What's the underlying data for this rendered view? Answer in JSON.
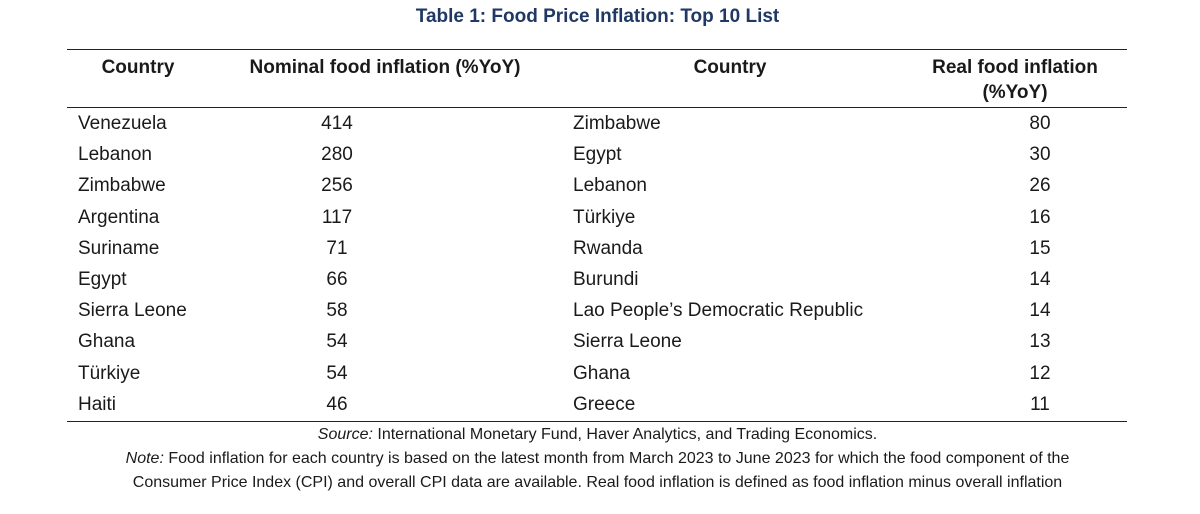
{
  "title": "Table 1: Food Price Inflation: Top 10 List",
  "headers": {
    "country_left": "Country",
    "nominal": "Nominal food inflation (%YoY)",
    "country_right": "Country",
    "real_line1": "Real food inflation",
    "real_line2": "(%YoY)"
  },
  "rows": [
    {
      "country_nominal": "Venezuela",
      "nominal": "414",
      "country_real": "Zimbabwe",
      "real": "80"
    },
    {
      "country_nominal": "Lebanon",
      "nominal": "280",
      "country_real": "Egypt",
      "real": "30"
    },
    {
      "country_nominal": "Zimbabwe",
      "nominal": "256",
      "country_real": "Lebanon",
      "real": "26"
    },
    {
      "country_nominal": "Argentina",
      "nominal": "117",
      "country_real": "Türkiye",
      "real": "16"
    },
    {
      "country_nominal": "Suriname",
      "nominal": "71",
      "country_real": "Rwanda",
      "real": "15"
    },
    {
      "country_nominal": "Egypt",
      "nominal": "66",
      "country_real": "Burundi",
      "real": "14"
    },
    {
      "country_nominal": "Sierra Leone",
      "nominal": "58",
      "country_real": "Lao People’s Democratic Republic",
      "real": "14"
    },
    {
      "country_nominal": "Ghana",
      "nominal": "54",
      "country_real": "Sierra Leone",
      "real": "13"
    },
    {
      "country_nominal": "Türkiye",
      "nominal": "54",
      "country_real": "Ghana",
      "real": "12"
    },
    {
      "country_nominal": "Haiti",
      "nominal": "46",
      "country_real": "Greece",
      "real": "11"
    }
  ],
  "source": {
    "label": "Source:",
    "text": " International Monetary Fund, Haver Analytics, and Trading Economics."
  },
  "note": {
    "label": "Note:",
    "text_line1": " Food inflation for each country is based on the latest month from March 2023 to June 2023 for which the food component of the",
    "text_line2": "Consumer Price Index (CPI) and overall CPI data are available. Real food inflation is defined as food inflation minus overall inflation"
  }
}
